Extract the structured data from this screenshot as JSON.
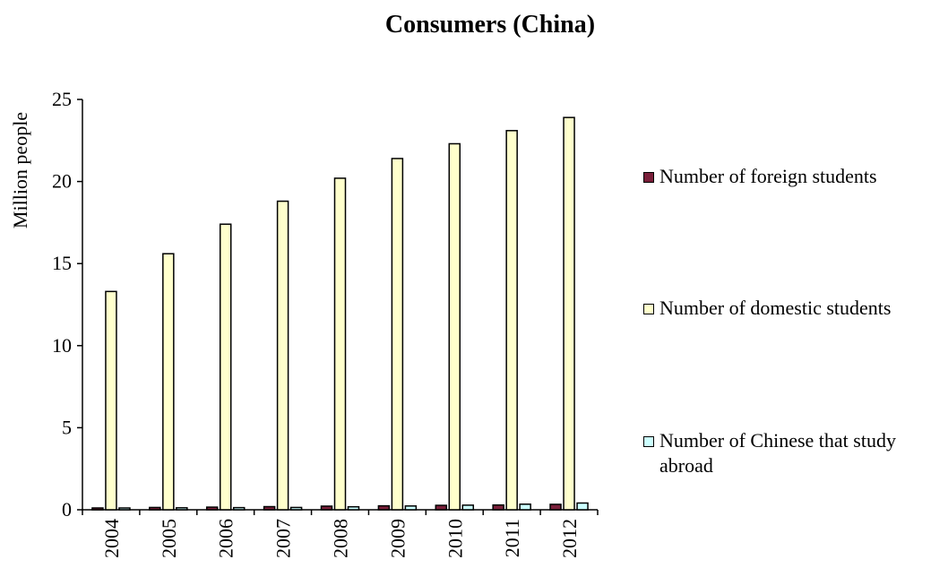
{
  "chart_data": {
    "type": "bar",
    "title": "Consumers (China)",
    "ylabel": "Million people",
    "xlabel": "",
    "ylim": [
      0,
      25
    ],
    "yticks": [
      0,
      5,
      10,
      15,
      20,
      25
    ],
    "categories": [
      "2004",
      "2005",
      "2006",
      "2007",
      "2008",
      "2009",
      "2010",
      "2011",
      "2012"
    ],
    "series": [
      {
        "name": "Number of foreign students",
        "color": "#7a1f3a",
        "values": [
          0.11,
          0.14,
          0.16,
          0.19,
          0.22,
          0.24,
          0.27,
          0.29,
          0.33
        ]
      },
      {
        "name": "Number of domestic students",
        "color": "#ffffcc",
        "values": [
          13.3,
          15.6,
          17.4,
          18.8,
          20.2,
          21.4,
          22.3,
          23.1,
          23.9
        ]
      },
      {
        "name": "Number of Chinese that study abroad",
        "color": "#ccffff",
        "values": [
          0.11,
          0.12,
          0.13,
          0.14,
          0.18,
          0.23,
          0.28,
          0.34,
          0.41
        ]
      }
    ],
    "grid": false,
    "legend_position": "right"
  }
}
